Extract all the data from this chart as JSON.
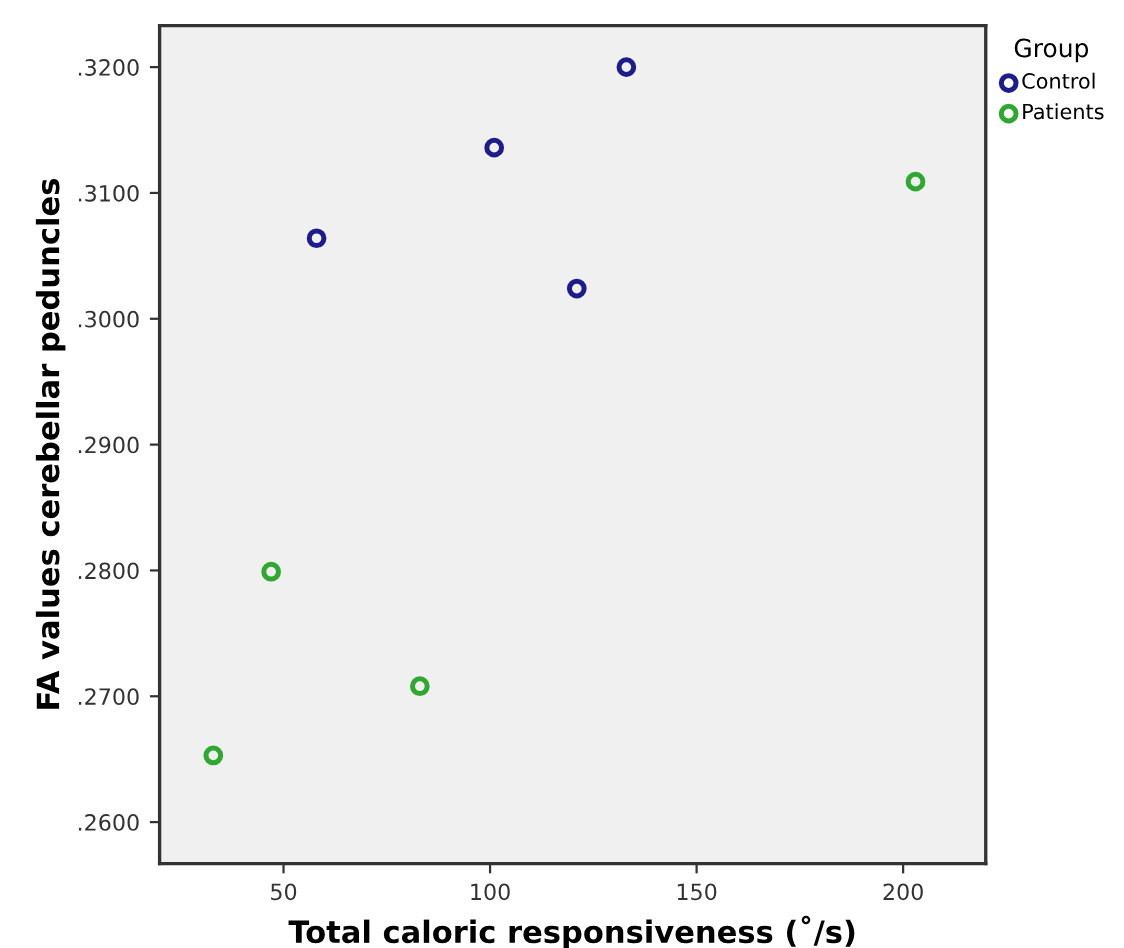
{
  "chart_data": {
    "type": "scatter",
    "xlabel": "Total caloric responsiveness (˚/s)",
    "ylabel": "FA values cerebellar peduncles",
    "legend_title": "Group",
    "legend": "top right",
    "marker": "circle",
    "grid": false,
    "xlim": [
      20,
      220
    ],
    "xticks": [
      50,
      100,
      150,
      200
    ],
    "ylim": [
      0.2567,
      0.3233
    ],
    "yticks": [
      {
        "value": 0.26,
        "label": ".2600"
      },
      {
        "value": 0.27,
        "label": ".2700"
      },
      {
        "value": 0.28,
        "label": ".2800"
      },
      {
        "value": 0.29,
        "label": ".2900"
      },
      {
        "value": 0.3,
        "label": ".3000"
      },
      {
        "value": 0.31,
        "label": ".3100"
      },
      {
        "value": 0.32,
        "label": ".3200"
      }
    ],
    "series": [
      {
        "name": "Control",
        "color": "#1c1c8c",
        "x": [
          58,
          101,
          121,
          133
        ],
        "values": [
          0.3064,
          0.3136,
          0.3024,
          0.32
        ]
      },
      {
        "name": "Patients",
        "color": "#2ea82e",
        "x": [
          33,
          47,
          83,
          203
        ],
        "values": [
          0.2653,
          0.2799,
          0.2708,
          0.3109
        ]
      }
    ]
  }
}
